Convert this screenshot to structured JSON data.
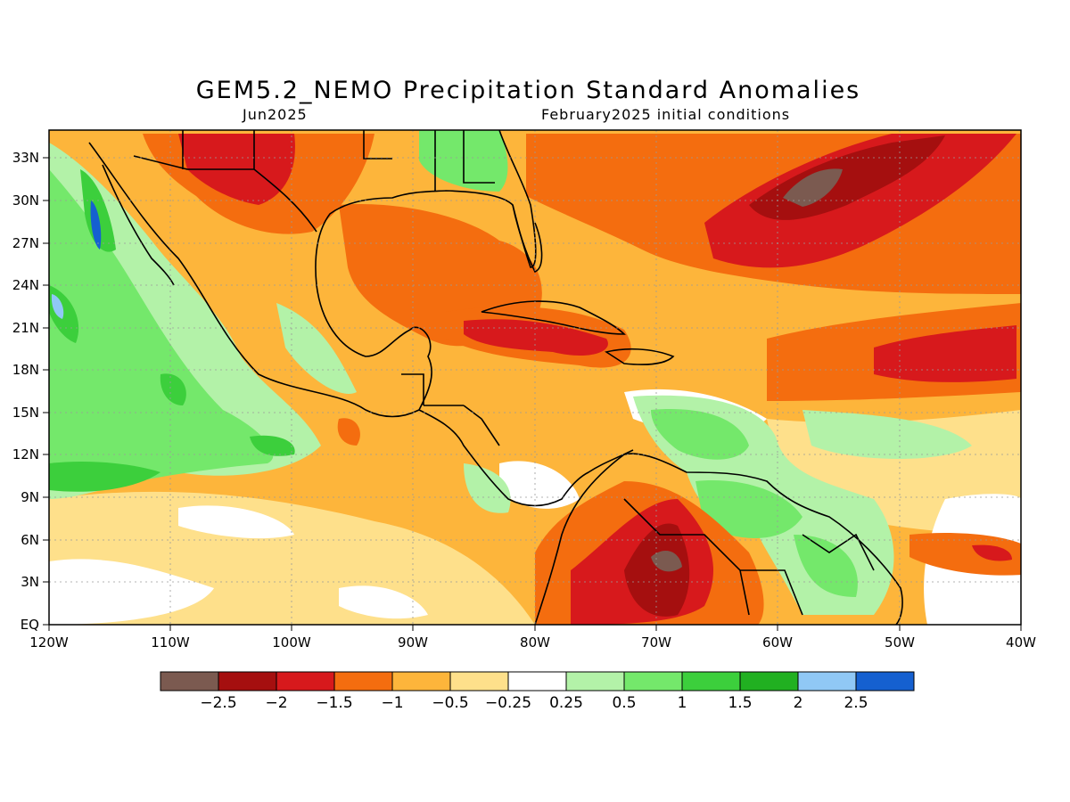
{
  "title": "GEM5.2_NEMO Precipitation Standard Anomalies",
  "subtitle_left": "Jun2025",
  "subtitle_right": "February2025 initial conditions",
  "map": {
    "region_lon": [
      -120,
      -40
    ],
    "region_lat": [
      0,
      35
    ],
    "lon_ticks": [
      "120W",
      "110W",
      "100W",
      "90W",
      "80W",
      "70W",
      "60W",
      "50W",
      "40W"
    ],
    "lat_ticks": [
      "33N",
      "30N",
      "27N",
      "24N",
      "21N",
      "18N",
      "15N",
      "12N",
      "9N",
      "6N",
      "3N",
      "EQ"
    ]
  },
  "colorbar": {
    "colors": [
      "#7b5a50",
      "#a50f0f",
      "#d7191c",
      "#f46d0f",
      "#fdb53b",
      "#fee08b",
      "#ffffff",
      "#b3f2a8",
      "#74e86b",
      "#3ccf3c",
      "#21b021",
      "#90c8f5",
      "#1560d0"
    ],
    "labels": [
      "−2.5",
      "−2",
      "−1.5",
      "−1",
      "−0.5",
      "−0.25",
      "0.25",
      "0.5",
      "1",
      "1.5",
      "2",
      "2.5"
    ]
  }
}
